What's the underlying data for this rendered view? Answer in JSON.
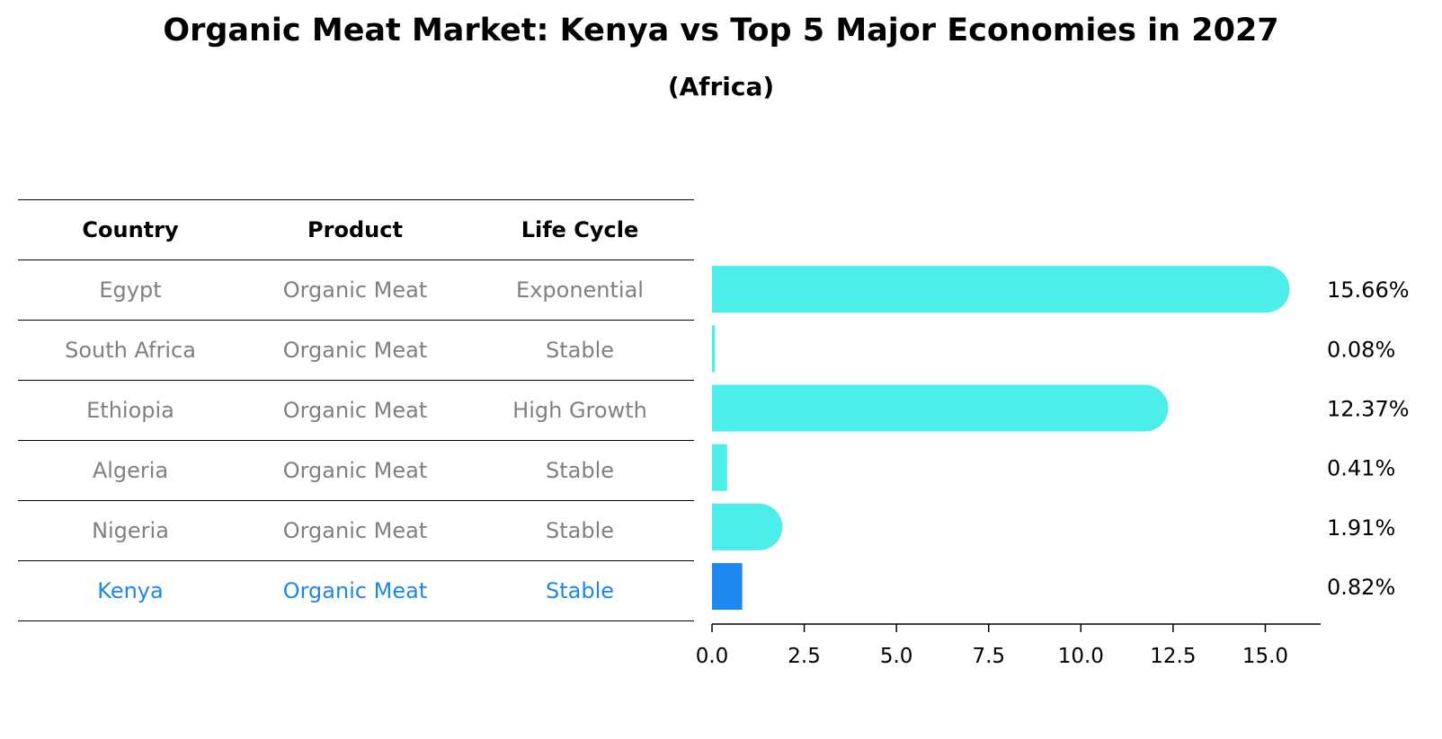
{
  "header": {
    "title": "Organic Meat Market: Kenya vs Top 5 Major Economies in 2027",
    "subtitle": "(Africa)"
  },
  "table": {
    "columns": [
      "Country",
      "Product",
      "Life Cycle"
    ],
    "rows": [
      {
        "country": "Egypt",
        "product": "Organic Meat",
        "life_cycle": "Exponential"
      },
      {
        "country": "South Africa",
        "product": "Organic Meat",
        "life_cycle": "Stable"
      },
      {
        "country": "Ethiopia",
        "product": "Organic Meat",
        "life_cycle": "High Growth"
      },
      {
        "country": "Algeria",
        "product": "Organic Meat",
        "life_cycle": "Stable"
      },
      {
        "country": "Nigeria",
        "product": "Organic Meat",
        "life_cycle": "Stable"
      },
      {
        "country": "Kenya",
        "product": "Organic Meat",
        "life_cycle": "Stable"
      }
    ],
    "highlight_row": "Kenya"
  },
  "colors": {
    "bar": "#4dede9",
    "highlight": "#1e88f0",
    "muted_text": "#808080",
    "highlight_text": "#1e88e5"
  },
  "chart_data": {
    "type": "bar",
    "orientation": "horizontal",
    "categories": [
      "Egypt",
      "South Africa",
      "Ethiopia",
      "Algeria",
      "Nigeria",
      "Kenya"
    ],
    "values": [
      15.66,
      0.08,
      12.37,
      0.41,
      1.91,
      0.82
    ],
    "value_labels": [
      "15.66%",
      "0.08%",
      "12.37%",
      "0.41%",
      "1.91%",
      "0.82%"
    ],
    "highlight": "Kenya",
    "xlim": [
      0,
      16.5
    ],
    "xticks": [
      0.0,
      2.5,
      5.0,
      7.5,
      10.0,
      12.5,
      15.0
    ],
    "xtick_labels": [
      "0.0",
      "2.5",
      "5.0",
      "7.5",
      "10.0",
      "12.5",
      "15.0"
    ],
    "grid": false
  }
}
